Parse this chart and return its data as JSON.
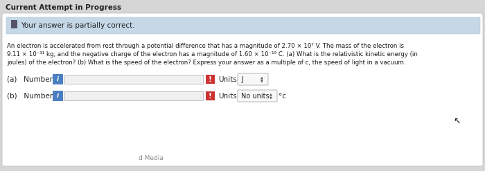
{
  "title": "Current Attempt in Progress",
  "banner_text": "Your answer is partially correct.",
  "banner_bg": "#c5d8e8",
  "banner_icon": "✏",
  "outer_bg": "#d6d6d6",
  "card_bg": "#ffffff",
  "paragraph_line1": "An electron is accelerated from rest through a potential difference that has a magnitude of 2.70 × 10⁷ V. The mass of the electron is",
  "paragraph_line2": "9.11 × 10⁻³¹ kg, and the negative charge of the electron has a magnitude of 1.60 × 10⁻¹⁹ C. (a) What is the relativistic kinetic energy (in",
  "paragraph_line3": "joules) of the electron? (b) What is the speed of the electron? Express your answer as a multiple of c, the speed of light in a vacuum.",
  "row_a_label": "(a)   Number",
  "row_b_label": "(b)   Number",
  "input_box_color": "#4a7fc1",
  "red_box_color": "#cc3333",
  "units_box_a": "J",
  "units_box_b": "No units",
  "units_suffix_b": "°c",
  "footer_text": "d Media",
  "title_fontsize": 7.5,
  "banner_fontsize": 7.5,
  "para_fontsize": 6.2,
  "label_fontsize": 7.5
}
